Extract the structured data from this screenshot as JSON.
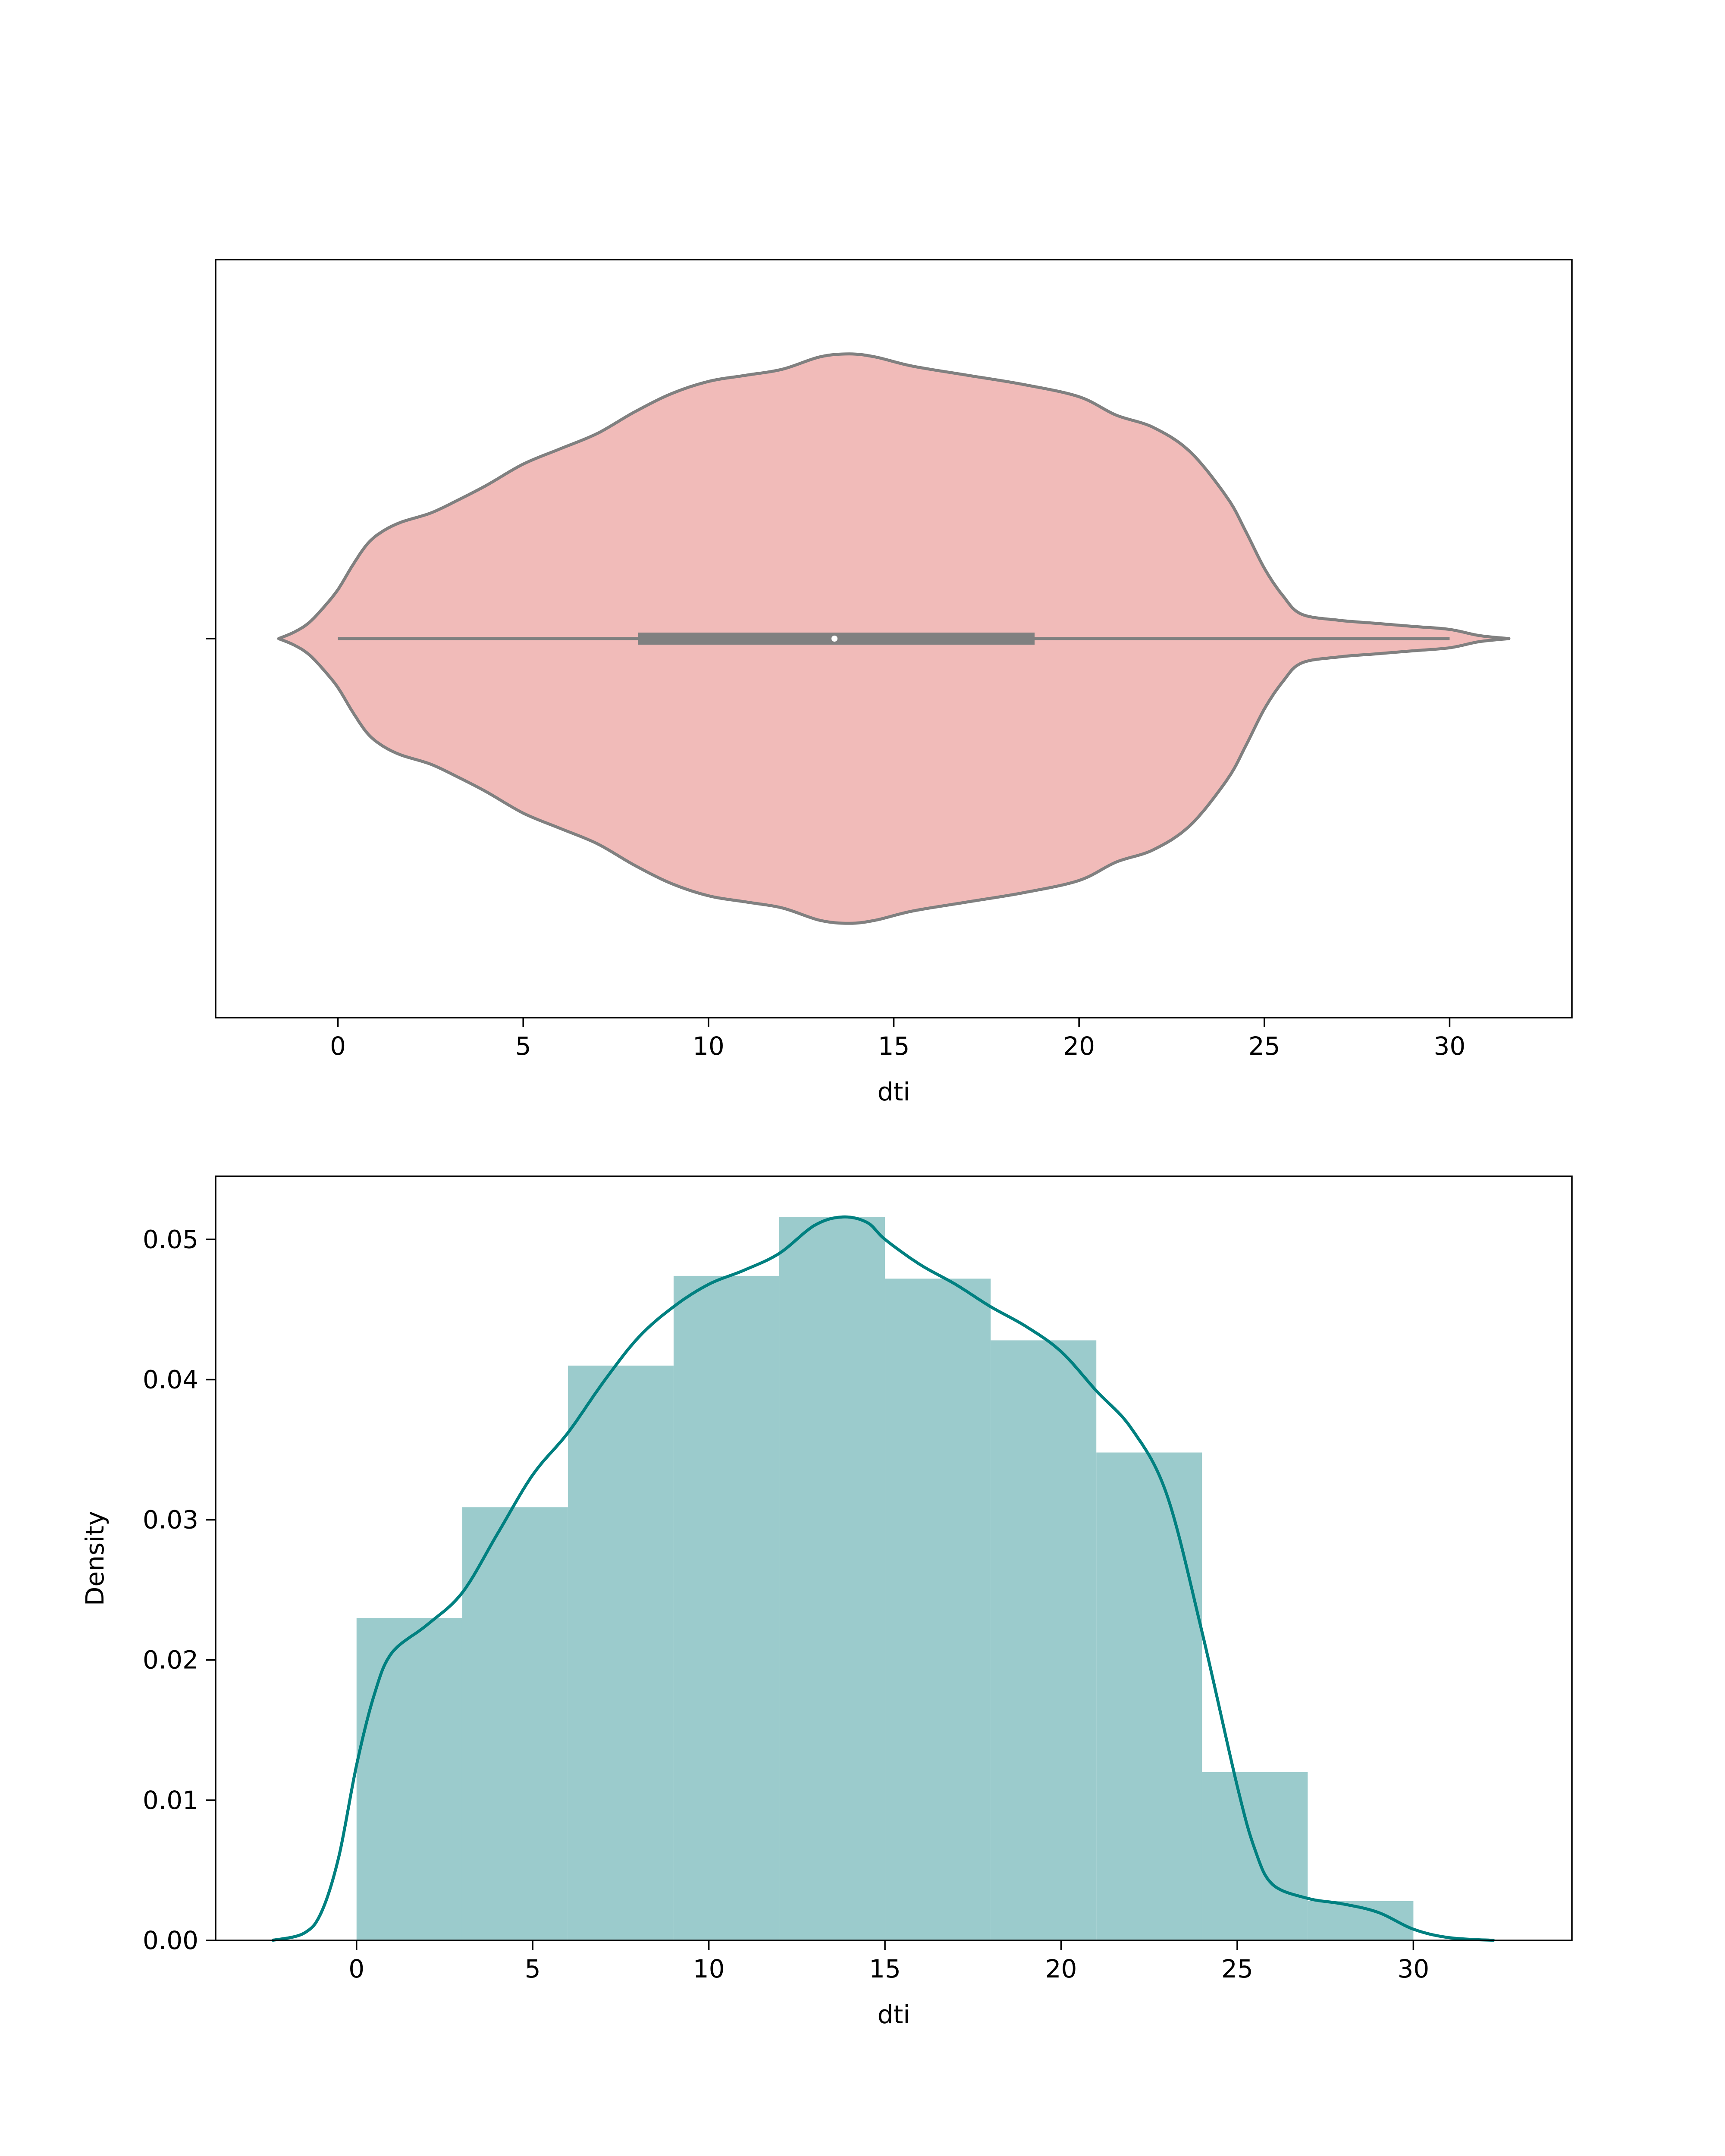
{
  "colors": {
    "violin_fill": "#f1bbb9",
    "violin_edge": "#808080",
    "box": "#808080",
    "median_dot": "#ffffff",
    "hist_fill": "#9bcbcc",
    "kde_line": "#008080",
    "axes": "#000000"
  },
  "chart_data": [
    {
      "type": "violin",
      "xlabel": "dti",
      "xlim": [
        -3.3,
        33.3
      ],
      "xticks": [
        0,
        5,
        10,
        15,
        20,
        25,
        30
      ],
      "xtick_labels": [
        "0",
        "5",
        "10",
        "15",
        "20",
        "25",
        "30"
      ],
      "whisker_range": [
        0,
        30
      ],
      "quartiles": [
        8.1,
        18.8
      ],
      "median": 13.4,
      "density_outline": [
        [
          -1.6,
          0.0
        ],
        [
          -1.2,
          0.02
        ],
        [
          -0.8,
          0.05
        ],
        [
          -0.4,
          0.1
        ],
        [
          0.0,
          0.16
        ],
        [
          0.4,
          0.24
        ],
        [
          0.8,
          0.31
        ],
        [
          1.2,
          0.35
        ],
        [
          1.7,
          0.38
        ],
        [
          2.5,
          0.41
        ],
        [
          3.2,
          0.45
        ],
        [
          4.0,
          0.5
        ],
        [
          5.0,
          0.57
        ],
        [
          6.0,
          0.62
        ],
        [
          7.0,
          0.67
        ],
        [
          8.0,
          0.74
        ],
        [
          9.0,
          0.8
        ],
        [
          10.0,
          0.84
        ],
        [
          11.0,
          0.86
        ],
        [
          12.0,
          0.88
        ],
        [
          13.0,
          0.92
        ],
        [
          13.8,
          0.93
        ],
        [
          14.5,
          0.92
        ],
        [
          15.5,
          0.89
        ],
        [
          17.0,
          0.86
        ],
        [
          18.5,
          0.83
        ],
        [
          20.0,
          0.79
        ],
        [
          21.0,
          0.73
        ],
        [
          22.0,
          0.69
        ],
        [
          23.0,
          0.61
        ],
        [
          24.0,
          0.46
        ],
        [
          24.5,
          0.35
        ],
        [
          25.0,
          0.23
        ],
        [
          25.5,
          0.14
        ],
        [
          26.0,
          0.08
        ],
        [
          27.0,
          0.06
        ],
        [
          28.0,
          0.05
        ],
        [
          29.0,
          0.04
        ],
        [
          30.0,
          0.03
        ],
        [
          30.8,
          0.01
        ],
        [
          31.6,
          0.0
        ]
      ]
    },
    {
      "type": "histogram",
      "xlabel": "dti",
      "ylabel": "Density",
      "xlim": [
        -4.0,
        34.5
      ],
      "ylim": [
        0,
        0.0545
      ],
      "xticks": [
        0,
        5,
        10,
        15,
        20,
        25,
        30
      ],
      "xtick_labels": [
        "0",
        "5",
        "10",
        "15",
        "20",
        "25",
        "30"
      ],
      "yticks": [
        0.0,
        0.01,
        0.02,
        0.03,
        0.04,
        0.05
      ],
      "ytick_labels": [
        "0.00",
        "0.01",
        "0.02",
        "0.03",
        "0.04",
        "0.05"
      ],
      "bins": [
        {
          "x0": 0,
          "x1": 3,
          "density": 0.023
        },
        {
          "x0": 3,
          "x1": 6,
          "density": 0.0309
        },
        {
          "x0": 6,
          "x1": 9,
          "density": 0.041
        },
        {
          "x0": 9,
          "x1": 12,
          "density": 0.0474
        },
        {
          "x0": 12,
          "x1": 15,
          "density": 0.0516
        },
        {
          "x0": 15,
          "x1": 18,
          "density": 0.0472
        },
        {
          "x0": 18,
          "x1": 21,
          "density": 0.0428
        },
        {
          "x0": 21,
          "x1": 24,
          "density": 0.0348
        },
        {
          "x0": 24,
          "x1": 27,
          "density": 0.012
        },
        {
          "x0": 27,
          "x1": 30,
          "density": 0.0028
        }
      ],
      "kde": [
        [
          -2.4,
          0.0
        ],
        [
          -1.5,
          0.0005
        ],
        [
          -1.0,
          0.002
        ],
        [
          -0.5,
          0.006
        ],
        [
          0.0,
          0.0125
        ],
        [
          0.5,
          0.0175
        ],
        [
          1.0,
          0.0205
        ],
        [
          2.0,
          0.0225
        ],
        [
          3.0,
          0.0248
        ],
        [
          4.0,
          0.029
        ],
        [
          5.0,
          0.0332
        ],
        [
          6.0,
          0.0362
        ],
        [
          7.0,
          0.0398
        ],
        [
          8.0,
          0.043
        ],
        [
          9.0,
          0.0452
        ],
        [
          10.0,
          0.0468
        ],
        [
          11.0,
          0.0478
        ],
        [
          12.0,
          0.049
        ],
        [
          13.0,
          0.051
        ],
        [
          13.8,
          0.0516
        ],
        [
          14.5,
          0.0512
        ],
        [
          15.0,
          0.05
        ],
        [
          16.0,
          0.0482
        ],
        [
          17.0,
          0.0468
        ],
        [
          18.0,
          0.0452
        ],
        [
          19.0,
          0.0438
        ],
        [
          20.0,
          0.042
        ],
        [
          21.0,
          0.0392
        ],
        [
          22.0,
          0.0365
        ],
        [
          23.0,
          0.0318
        ],
        [
          24.0,
          0.022
        ],
        [
          25.0,
          0.011
        ],
        [
          25.5,
          0.0065
        ],
        [
          26.0,
          0.004
        ],
        [
          27.0,
          0.003
        ],
        [
          28.0,
          0.0026
        ],
        [
          29.0,
          0.002
        ],
        [
          30.0,
          0.0008
        ],
        [
          31.0,
          0.0002
        ],
        [
          32.3,
          0.0
        ]
      ]
    }
  ]
}
